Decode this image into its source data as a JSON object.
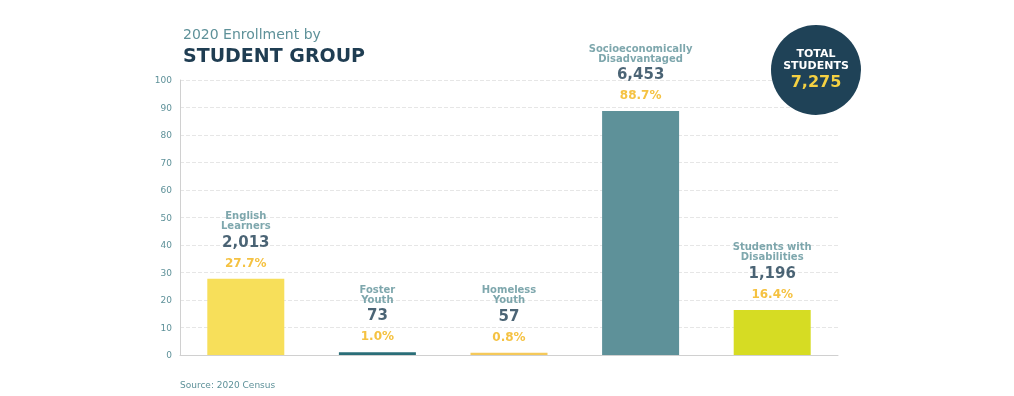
{
  "chart_data": {
    "type": "bar",
    "subtitle": "2020 Enrollment by",
    "title": "STUDENT GROUP",
    "categories": [
      "English Learners",
      "Foster Youth",
      "Homeless Youth",
      "Socioeconomically Disadvantaged",
      "Students with Disabilities"
    ],
    "values": [
      27.7,
      1.0,
      0.8,
      88.7,
      16.4
    ],
    "colors": [
      "#f7df5a",
      "#2a6e78",
      "#f5c95a",
      "#5e9199",
      "#d6dc23"
    ],
    "value_labels": [
      "27.7%",
      "1.0%",
      "0.8%",
      "88.7%",
      "16.4%"
    ],
    "ylim": [
      0,
      100
    ],
    "yticks": [
      0,
      10,
      20,
      30,
      40,
      50,
      60,
      70,
      80,
      90,
      100
    ],
    "grid": "y",
    "tick_labels": "y",
    "annotations": [
      "TOTAL STUDENTS",
      "7,275",
      "Source: 2020 Census",
      {
        "text": "2,013",
        "x": "English Learners",
        "y": 27.7
      },
      {
        "text": "73",
        "x": "Foster Youth",
        "y": 1.0
      },
      {
        "text": "57",
        "x": "Homeless Youth",
        "y": 0.8
      },
      {
        "text": "6,453",
        "x": "Socioeconomically Disadvantaged",
        "y": 88.7
      },
      {
        "text": "1,196",
        "x": "Students with Disabilities",
        "y": 16.4
      }
    ]
  }
}
